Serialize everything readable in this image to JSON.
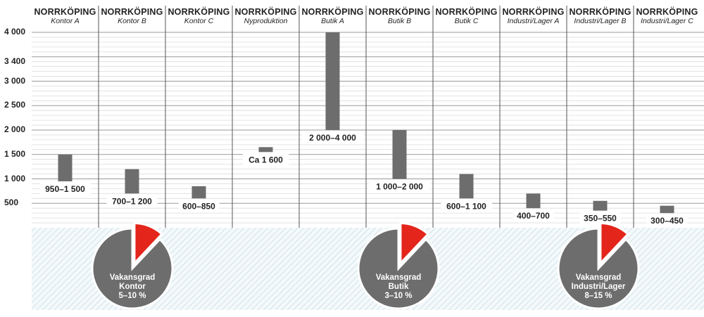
{
  "chart_data": {
    "type": "bar",
    "ylim": [
      0,
      4000
    ],
    "yticks": [
      "4 000",
      "3 400",
      "3 000",
      "2 500",
      "2 000",
      "1 500",
      "1 000",
      "500"
    ],
    "ytick_values": [
      4000,
      3400,
      3000,
      2500,
      2000,
      1500,
      1000,
      500
    ],
    "grid": true,
    "bar_color": "#6d6d6d",
    "columns": [
      {
        "region": "NORRKÖPING",
        "segment": "Kontor A",
        "low": 950,
        "high": 1500,
        "label": "950–1 500"
      },
      {
        "region": "NORRKÖPING",
        "segment": "Kontor B",
        "low": 700,
        "high": 1200,
        "label": "700–1 200"
      },
      {
        "region": "NORRKÖPING",
        "segment": "Kontor C",
        "low": 600,
        "high": 850,
        "label": "600–850"
      },
      {
        "region": "NORRKÖPING",
        "segment": "Nyproduktion",
        "low": 1550,
        "high": 1650,
        "label": "Ca 1 600"
      },
      {
        "region": "NORRKÖPING",
        "segment": "Butik A",
        "low": 2000,
        "high": 4000,
        "label": "2 000–4 000"
      },
      {
        "region": "NORRKÖPING",
        "segment": "Butik B",
        "low": 1000,
        "high": 2000,
        "label": "1 000–2 000"
      },
      {
        "region": "NORRKÖPING",
        "segment": "Butik C",
        "low": 600,
        "high": 1100,
        "label": "600–1 100"
      },
      {
        "region": "NORRKÖPING",
        "segment": "Industri/Lager A",
        "low": 400,
        "high": 700,
        "label": "400–700"
      },
      {
        "region": "NORRKÖPING",
        "segment": "Industri/Lager B",
        "low": 350,
        "high": 550,
        "label": "350–550"
      },
      {
        "region": "NORRKÖPING",
        "segment": "Industri/Lager C",
        "low": 300,
        "high": 450,
        "label": "300–450"
      }
    ],
    "pies": [
      {
        "lines": [
          "Vakansgrad",
          "Kontor",
          "5–10 %"
        ],
        "fraction": 0.12
      },
      {
        "lines": [
          "Vakansgrad",
          "Butik",
          "3–10 %"
        ],
        "fraction": 0.12
      },
      {
        "lines": [
          "Vakansgrad",
          "Industri/Lager",
          "8–15 %"
        ],
        "fraction": 0.12
      }
    ],
    "pie_colors": {
      "main": "#6d6d6d",
      "slice": "#e3251b"
    }
  }
}
